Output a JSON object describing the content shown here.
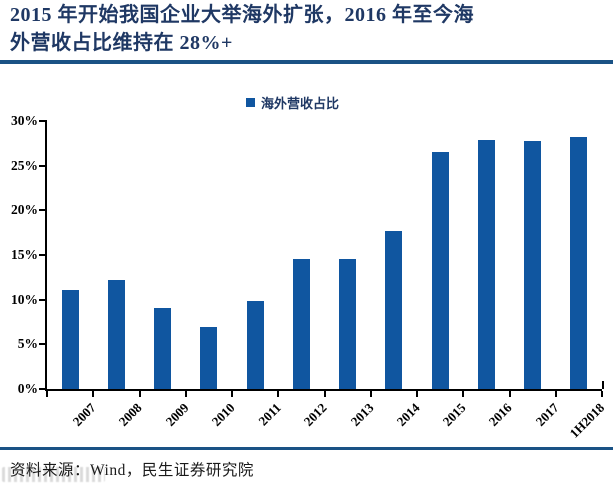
{
  "title": {
    "line1": "2015 年开始我国企业大举海外扩张，2016 年至今海",
    "line2": "外营收占比维持在 28%+"
  },
  "legend": {
    "label": "海外营收占比"
  },
  "chart_data": {
    "type": "bar",
    "title": "海外营收占比",
    "categories": [
      "2007",
      "2008",
      "2009",
      "2010",
      "2011",
      "2012",
      "2013",
      "2014",
      "2015",
      "2016",
      "2017",
      "1H2018"
    ],
    "values": [
      11.1,
      12.2,
      9.1,
      6.9,
      9.8,
      14.6,
      14.6,
      17.7,
      26.5,
      27.9,
      27.8,
      28.2
    ],
    "unit": "%",
    "xlabel": "",
    "ylabel": "",
    "ylim": [
      0,
      30
    ],
    "ytick_step": 5,
    "ytick_labels": [
      "0%",
      "5%",
      "10%",
      "15%",
      "20%",
      "25%",
      "30%"
    ],
    "grid": false,
    "legend_position": "top-center",
    "x_labels_rotation_deg": -45
  },
  "source": {
    "label": "资料来源：Wind，民生证券研究院"
  },
  "colors": {
    "title_navy": "#1f3864",
    "rule_blue": "#1a5285",
    "bar_blue": "#1056a0",
    "axis_black": "#000000",
    "source_ink": "#1a1a1a"
  }
}
